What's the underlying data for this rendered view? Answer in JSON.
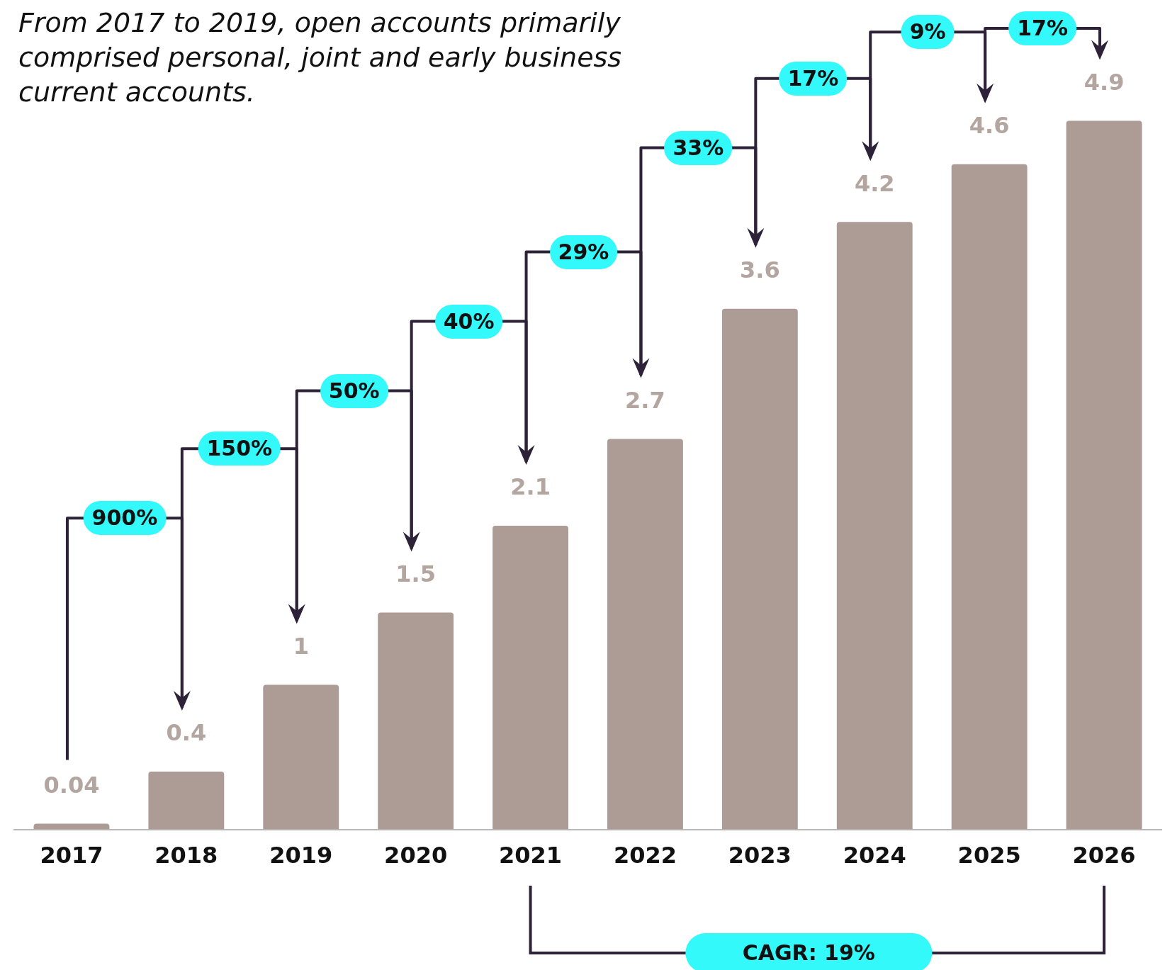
{
  "chart_data": {
    "type": "bar",
    "title": "From 2017 to 2019, open accounts primarily comprised personal, joint and early business current accounts.",
    "categories": [
      "2017",
      "2018",
      "2019",
      "2020",
      "2021",
      "2022",
      "2023",
      "2024",
      "2025",
      "2026"
    ],
    "values": [
      0.04,
      0.4,
      1,
      1.5,
      2.1,
      2.7,
      3.6,
      4.2,
      4.6,
      4.9
    ],
    "color": "#ad9b95",
    "data_labels": true,
    "grid": false,
    "legend": false,
    "tick_labels": "x",
    "annotations": [
      "900%",
      "150%",
      "50%",
      "40%",
      "29%",
      "33%",
      "17%",
      "9%",
      "17%",
      "CAGR: 19%"
    ]
  }
}
